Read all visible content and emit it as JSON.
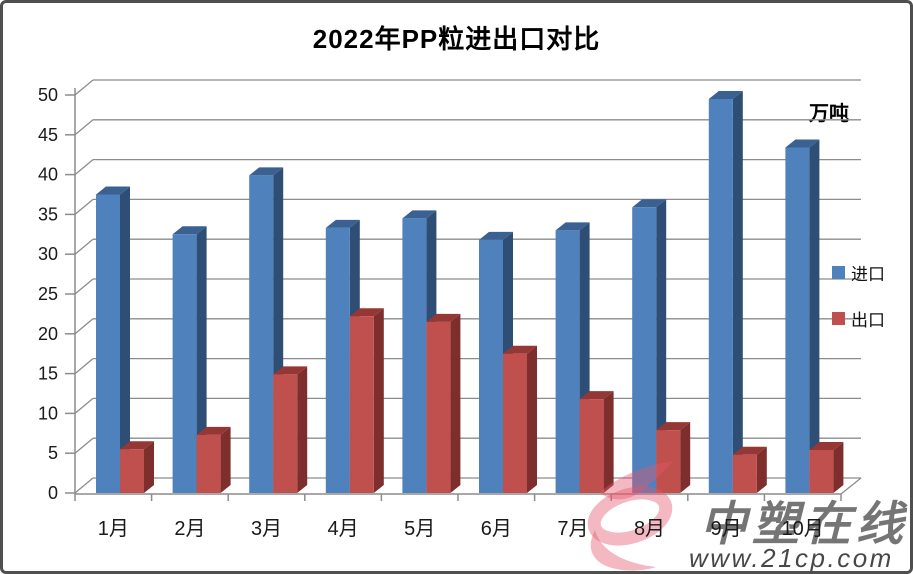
{
  "title": "2022年PP粒进出口对比",
  "unit_label": "万吨",
  "legend": {
    "items": [
      {
        "label": "进口",
        "color": "#4F81BD"
      },
      {
        "label": "出口",
        "color": "#C0504D"
      }
    ]
  },
  "watermark": {
    "brand": "中塑在线",
    "url": "www.21cp.com",
    "logo_color": "#E4566E",
    "text_color": "#9DBBDC"
  },
  "chart_data": {
    "type": "bar",
    "style": "3d-clustered-column",
    "title": "2022年PP粒进出口对比",
    "unit": "万吨",
    "categories": [
      "1月",
      "2月",
      "3月",
      "4月",
      "5月",
      "6月",
      "7月",
      "8月",
      "9月",
      "10月"
    ],
    "series": [
      {
        "name": "进口",
        "face_color": "#4F81BD",
        "top_color": "#3A6191",
        "side_color": "#2E4E76",
        "values": [
          37.5,
          32.5,
          39.9,
          33.3,
          34.5,
          31.8,
          33.0,
          35.9,
          49.5,
          43.4
        ]
      },
      {
        "name": "出口",
        "face_color": "#C0504D",
        "top_color": "#953735",
        "side_color": "#7E2E2C",
        "values": [
          5.5,
          7.3,
          14.9,
          22.2,
          21.5,
          17.5,
          11.8,
          7.9,
          4.8,
          5.4
        ]
      }
    ],
    "ylim": [
      0,
      50
    ],
    "yticks": [
      0,
      5,
      10,
      15,
      20,
      25,
      30,
      35,
      40,
      45,
      50
    ],
    "grid": true,
    "grid_color": "#8C8C8C",
    "legend_position": "right"
  }
}
